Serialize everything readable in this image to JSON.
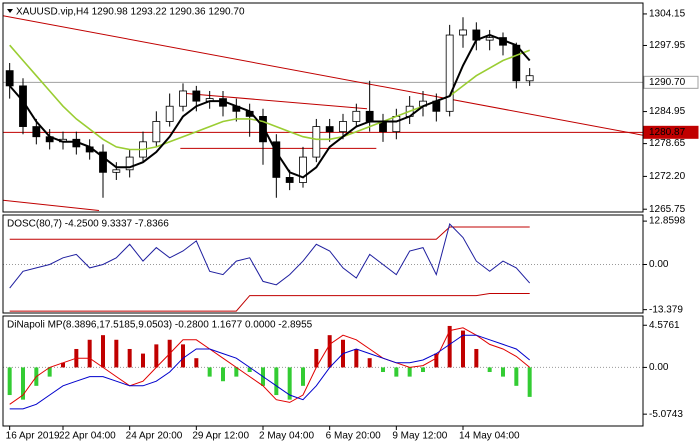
{
  "chart_data": [
    {
      "type": "candlestick",
      "title": "XAUUSD.vip,H4  1290.98 1293.22 1290.36 1290.70",
      "categories": [
        "16 Apr 2019",
        null,
        null,
        null,
        "22 Apr 04:00",
        null,
        null,
        null,
        null,
        "24 Apr 20:00",
        null,
        null,
        null,
        null,
        "29 Apr 12:00",
        null,
        null,
        null,
        null,
        "2 May 04:00",
        null,
        null,
        null,
        null,
        "6 May 20:00",
        null,
        null,
        null,
        null,
        "9 May 12:00",
        null,
        null,
        null,
        null,
        "14 May 04:00",
        null,
        null,
        null,
        null,
        null
      ],
      "open": [
        1293,
        1290,
        1282,
        1280,
        1279,
        1279.5,
        1278,
        1277,
        1273,
        1273.5,
        1276,
        1279,
        1283,
        1286,
        1289,
        1287,
        1287.5,
        1286,
        1285,
        1284,
        1279,
        1272,
        1271,
        1276,
        1282,
        1281,
        1283,
        1285,
        1283,
        1281,
        1284,
        1286,
        1287,
        1285,
        1300,
        1301,
        1299,
        1299.5,
        1298,
        1291
      ],
      "high": [
        1294.5,
        1291.5,
        1283.5,
        1281.5,
        1281,
        1281,
        1279.5,
        1278.5,
        1275,
        1277.5,
        1281,
        1285,
        1288.5,
        1290.5,
        1290,
        1289,
        1289,
        1287.5,
        1286.5,
        1285.5,
        1280.5,
        1273.5,
        1278,
        1283.5,
        1283.5,
        1284.5,
        1286.5,
        1291,
        1284.5,
        1285.5,
        1288,
        1289,
        1288.5,
        1302,
        1303.5,
        1302.5,
        1301,
        1300.5,
        1298.5,
        1293.5
      ],
      "low": [
        1287.5,
        1280.5,
        1278.5,
        1277.5,
        1277.5,
        1276.5,
        1275.5,
        1268,
        1271.5,
        1272,
        1275,
        1278,
        1282,
        1285,
        1285,
        1285.5,
        1284,
        1283,
        1280,
        1274.5,
        1268,
        1269.5,
        1270,
        1275,
        1279,
        1279.5,
        1282,
        1281,
        1279,
        1279.5,
        1282.5,
        1284,
        1283,
        1284,
        1297.5,
        1297,
        1297,
        1296,
        1289.5,
        1290
      ],
      "close": [
        1290,
        1282,
        1280,
        1279,
        1279.5,
        1278,
        1277,
        1273,
        1273.5,
        1276,
        1279,
        1283,
        1286,
        1289,
        1287,
        1287.5,
        1286,
        1285,
        1284,
        1279,
        1272,
        1271,
        1276,
        1282,
        1281,
        1283,
        1285,
        1283,
        1281,
        1284,
        1286,
        1287,
        1285,
        1300,
        1301,
        1299,
        1299.5,
        1298,
        1291,
        1292
      ],
      "up_color": "#ffffff",
      "down_color": "#000000",
      "lines": [
        {
          "color": "#9acd32",
          "values": [
            1298,
            1295,
            1292,
            1289,
            1286,
            1283.5,
            1281.5,
            1279.5,
            1278,
            1277.5,
            1277.5,
            1278,
            1279,
            1280,
            1281,
            1282,
            1283,
            1283.5,
            1283.5,
            1283,
            1282,
            1281,
            1280,
            1279.5,
            1279.5,
            1280,
            1281,
            1282,
            1283,
            1284,
            1285,
            1286,
            1287,
            1288,
            1290,
            1292,
            1293.5,
            1295,
            1296,
            1297
          ]
        },
        {
          "color": "#000000",
          "values": [
            1290,
            1287,
            1283,
            1280,
            1279,
            1279,
            1278,
            1276,
            1274,
            1274,
            1275,
            1277,
            1280,
            1284,
            1286,
            1287,
            1287,
            1286,
            1285,
            1282,
            1277,
            1273,
            1272,
            1274,
            1278,
            1280,
            1282,
            1283,
            1283,
            1283,
            1284,
            1286,
            1287,
            1288,
            1294,
            1299,
            1300,
            1299,
            1298,
            1295
          ]
        }
      ],
      "trendlines": [
        {
          "color": "#c00000",
          "x": [
            0,
            48
          ],
          "y": [
            1303.8,
            1280.3
          ]
        },
        {
          "color": "#c00000",
          "x": [
            13.3,
            27.3
          ],
          "y": [
            1288.6,
            1285.5
          ]
        },
        {
          "color": "#c00000",
          "x": [
            13.3,
            28
          ],
          "y": [
            1277.7,
            1277.7
          ]
        },
        {
          "color": "#c00000",
          "x": [
            0,
            7.2
          ],
          "y": [
            1267.5,
            1265.5
          ]
        }
      ],
      "price_labels": [
        {
          "value": 1290.7,
          "label": "1290.70",
          "color": "#a0a0a0",
          "background": "#ffffff",
          "text_color": "#000000"
        },
        {
          "value": 1280.87,
          "color": "#c00000",
          "background": "#c00000",
          "text_color": "#ffffff"
        }
      ],
      "ylim": [
        1265.2,
        1306.3
      ],
      "yticks": [
        1304.15,
        1297.95,
        1284.95,
        1278.65,
        {
          "value": 1272.2,
          "label": "1272.20"
        },
        1265.75
      ]
    },
    {
      "type": "line",
      "title": "DOSC(80,7) -4.2500 9.3337 -7.8366",
      "ylim": [
        -14.37,
        14.67
      ],
      "yticks": [
        12.8598,
        {
          "value": 0,
          "label": "0.00"
        },
        -13.379
      ],
      "hlines": [
        0
      ],
      "series": [
        {
          "color": "#c00000",
          "values": [
            7.5,
            7.5,
            7.5,
            7.5,
            7.5,
            7.5,
            7.5,
            7.5,
            7.5,
            7.5,
            7.5,
            7.5,
            7.5,
            7.5,
            7.5,
            7.5,
            7.5,
            7.5,
            7.5,
            7.5,
            7.5,
            7.5,
            7.5,
            7.5,
            7.5,
            7.5,
            7.5,
            7.5,
            7.5,
            7.5,
            7.5,
            7.5,
            7.5,
            11.1,
            11.1,
            11.1,
            11.1,
            11.1,
            11.1,
            11.1
          ]
        },
        {
          "color": "#c00000",
          "values": [
            -13.8,
            -13.8,
            -13.8,
            -13.8,
            -13.8,
            -13.8,
            -13.8,
            -13.8,
            -13.8,
            -13.8,
            -13.8,
            -13.8,
            -13.8,
            -13.8,
            -13.8,
            -13.8,
            -13.8,
            -13.8,
            -9.2,
            -9.2,
            -9.2,
            -9.2,
            -9.2,
            -9.2,
            -9.2,
            -9.2,
            -9.2,
            -9.2,
            -9.2,
            -9.2,
            -9.2,
            -9.2,
            -9.2,
            -9.2,
            -9.2,
            -9.2,
            -8.6,
            -8.6,
            -8.6,
            -8.6
          ]
        },
        {
          "color": "#1f1f9f",
          "values": [
            -7,
            -2,
            -1,
            0,
            2,
            3,
            -1,
            0,
            2,
            6,
            1,
            5,
            2,
            4,
            7,
            -2,
            -3,
            1,
            2,
            -5,
            -6,
            -3,
            1,
            6,
            4,
            -1,
            -4,
            3,
            0,
            -3,
            4,
            5,
            -3,
            12,
            8,
            1,
            -2,
            1,
            -1,
            -5.5
          ]
        }
      ]
    },
    {
      "type": "histogram_line",
      "title": "DiNapoli MP(8.3896,17.5185,9.0503) -0.2800 1.1677 0.0000 -2.8955",
      "ylim": [
        -6.36,
        5.58
      ],
      "yticks": [
        4.5761,
        {
          "value": 0,
          "label": "0.00"
        },
        -5.0743
      ],
      "hlines": [
        0
      ],
      "histogram": {
        "up_color": "#c00000",
        "down_color": "#33cc33",
        "values": [
          -3,
          -3.5,
          -2,
          -1,
          0.5,
          2,
          3,
          3.5,
          3,
          2,
          1.5,
          2.5,
          3,
          2.5,
          1,
          -1,
          -1.5,
          -1,
          -0.5,
          -2,
          -3,
          -3.5,
          -2,
          2,
          3.5,
          3,
          2,
          1,
          -0.5,
          -1,
          -1,
          -0.5,
          1.5,
          4.5,
          4,
          2,
          -0.5,
          -1,
          -2,
          -3.2
        ]
      },
      "series": [
        {
          "color": "#e00000",
          "values": [
            -4,
            -3,
            -1,
            0,
            0.5,
            1,
            1,
            0,
            -1,
            -2,
            -1.5,
            0,
            1.5,
            3,
            3,
            2,
            1,
            0,
            -1,
            -2,
            -3.5,
            -3.8,
            -3,
            0,
            2.5,
            3.5,
            3,
            2,
            1,
            0.5,
            0,
            0.2,
            1,
            4,
            4.3,
            3.5,
            2.5,
            2,
            1.2,
            0
          ]
        },
        {
          "color": "#0000cc",
          "values": [
            -4.5,
            -4.5,
            -4,
            -3,
            -2,
            -1.5,
            -1,
            -1,
            -1.5,
            -2,
            -2,
            -1.5,
            -0.5,
            1,
            2,
            2,
            1.5,
            1,
            0,
            -1,
            -2,
            -3,
            -3.5,
            -2,
            0,
            1.5,
            2,
            1.5,
            1,
            0.5,
            0.5,
            0.8,
            1.5,
            2.5,
            3.5,
            3.5,
            3,
            2.5,
            2,
            0.8
          ]
        }
      ]
    }
  ]
}
